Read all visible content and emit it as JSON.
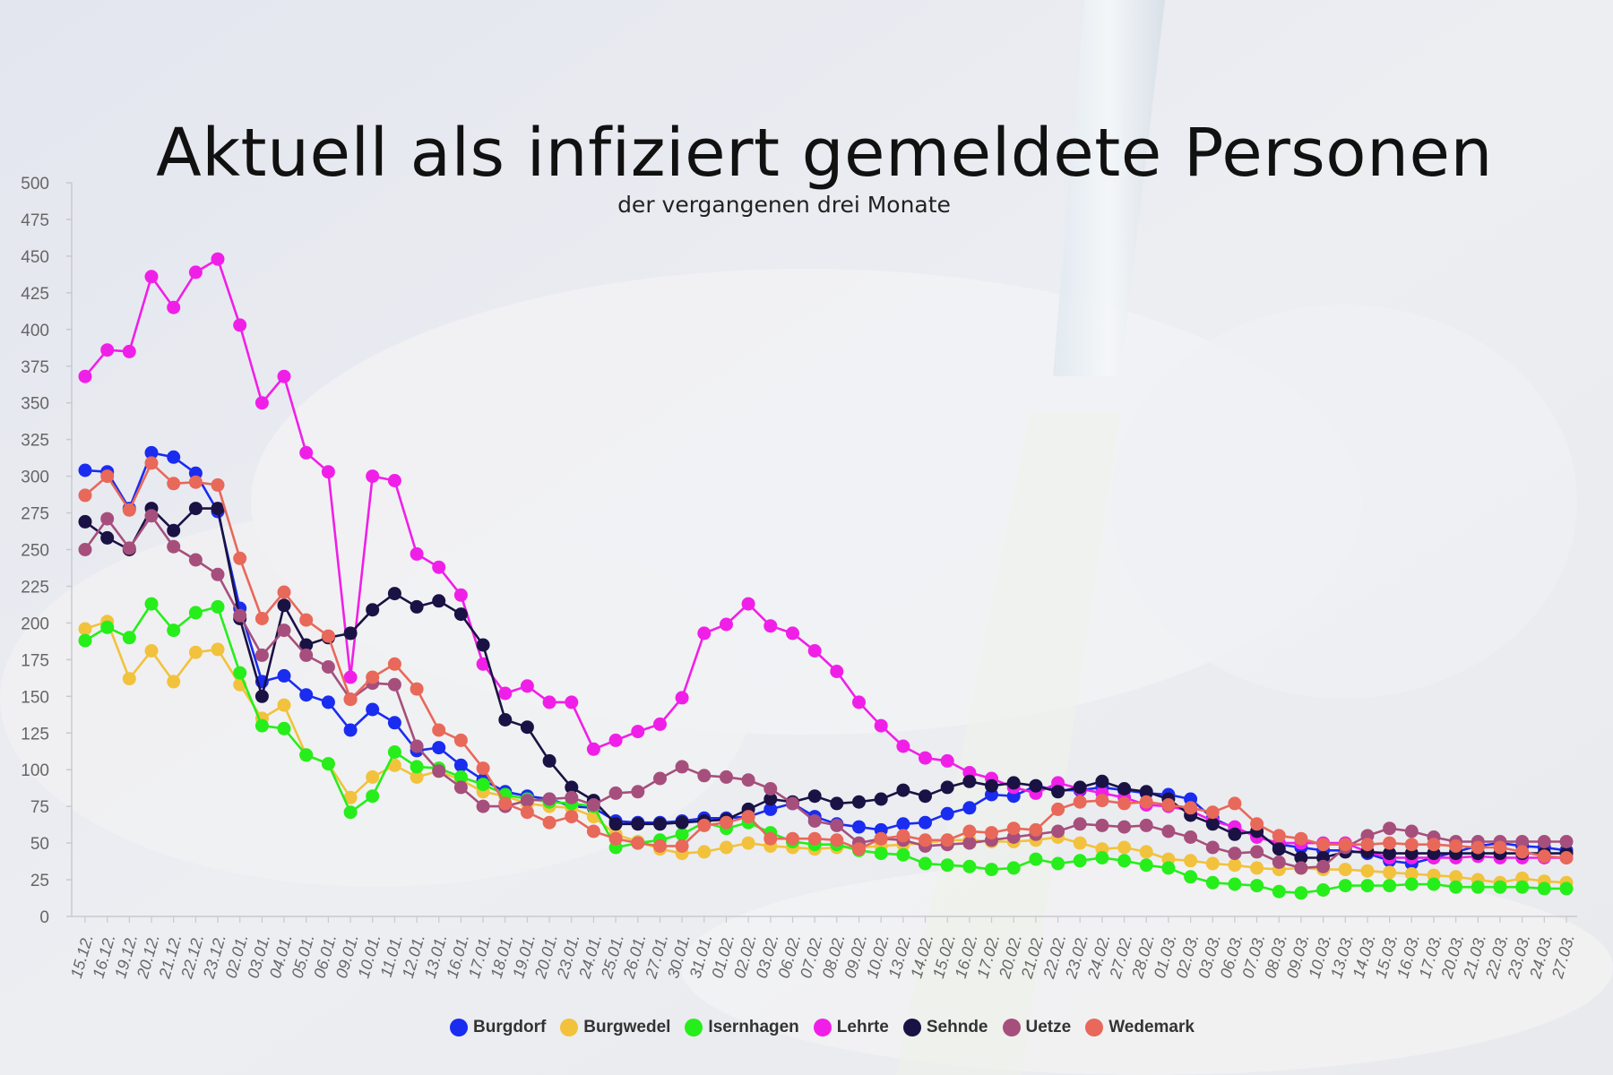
{
  "chart_data": {
    "type": "line",
    "title": "Aktuell als infiziert gemeldete Personen",
    "subtitle": "der vergangenen drei Monate",
    "xlabel": "",
    "ylabel": "",
    "ylim": [
      0,
      500
    ],
    "yticks": [
      0,
      25,
      50,
      75,
      100,
      125,
      150,
      175,
      200,
      225,
      250,
      275,
      300,
      325,
      350,
      375,
      400,
      425,
      450,
      475,
      500
    ],
    "grid": false,
    "legend_position": "bottom",
    "categories": [
      "15.12.",
      "16.12.",
      "19.12.",
      "20.12.",
      "21.12.",
      "22.12.",
      "23.12.",
      "02.01.",
      "03.01.",
      "04.01.",
      "05.01.",
      "06.01.",
      "09.01.",
      "10.01.",
      "11.01.",
      "12.01.",
      "13.01.",
      "16.01.",
      "17.01.",
      "18.01.",
      "19.01.",
      "20.01.",
      "23.01.",
      "24.01.",
      "25.01.",
      "26.01.",
      "27.01.",
      "30.01.",
      "31.01.",
      "01.02.",
      "02.02.",
      "03.02.",
      "06.02.",
      "07.02.",
      "08.02.",
      "09.02.",
      "10.02.",
      "13.02.",
      "14.02.",
      "15.02.",
      "16.02.",
      "17.02.",
      "20.02.",
      "21.02.",
      "22.02.",
      "23.02.",
      "24.02.",
      "27.02.",
      "28.02.",
      "01.03.",
      "02.03.",
      "03.03.",
      "06.03.",
      "07.03.",
      "08.03.",
      "09.03.",
      "10.03.",
      "13.03.",
      "14.03.",
      "15.03.",
      "16.03.",
      "17.03.",
      "20.03.",
      "21.03.",
      "22.03.",
      "23.03.",
      "24.03.",
      "27.03."
    ],
    "tick_labels": [
      "15.12.",
      "16.12.",
      "19.12.",
      "20.12.",
      "21.12.",
      "22.12.",
      "23.12.",
      "02.01.",
      "03.01.",
      "04.01.",
      "05.01.",
      "06.01.",
      "09.01.",
      "10.01.",
      "11.01.",
      "12.01.",
      "13.01.",
      "16.01.",
      "17.01.",
      "18.01.",
      "19.01.",
      "20.01.",
      "23.01.",
      "24.01.",
      "25.01.",
      "26.01.",
      "27.01.",
      "30.01.",
      "31.01.",
      "01.02.",
      "02.02.",
      "03.02.",
      "06.02.",
      "07.02.",
      "08.02.",
      "09.02.",
      "10.02.",
      "13.02.",
      "14.02.",
      "15.02.",
      "16.02.",
      "17.02.",
      "20.02.",
      "21.02.",
      "22.02.",
      "23.02.",
      "24.02.",
      "27.02.",
      "28.02.",
      "01.03.",
      "02.03.",
      "03.03.",
      "06.03.",
      "07.03.",
      "08.03.",
      "09.03.",
      "10.03.",
      "13.03.",
      "14.03.",
      "15.03.",
      "16.03.",
      "17.03.",
      "20.03.",
      "21.03.",
      "22.03.",
      "23.03.",
      "24.03.",
      "27.03."
    ],
    "series": [
      {
        "name": "Burgdorf",
        "color": "#1a2cf0",
        "values": [
          304,
          303,
          278,
          316,
          313,
          302,
          276,
          210,
          160,
          164,
          151,
          146,
          127,
          141,
          132,
          113,
          115,
          103,
          93,
          85,
          82,
          80,
          75,
          74,
          65,
          64,
          64,
          65,
          67,
          67,
          68,
          73,
          77,
          68,
          63,
          61,
          59,
          63,
          64,
          70,
          74,
          83,
          82,
          89,
          86,
          86,
          88,
          86,
          84,
          83,
          80,
          67,
          60,
          55,
          49,
          47,
          45,
          45,
          43,
          38,
          36,
          40,
          44,
          48,
          50,
          48,
          47,
          45
        ]
      },
      {
        "name": "Burgwedel",
        "color": "#f2c23c",
        "values": [
          196,
          201,
          162,
          181,
          160,
          180,
          182,
          158,
          135,
          144,
          110,
          104,
          81,
          95,
          103,
          95,
          99,
          93,
          85,
          82,
          77,
          75,
          74,
          68,
          56,
          51,
          46,
          43,
          44,
          47,
          50,
          48,
          47,
          46,
          47,
          47,
          48,
          49,
          50,
          52,
          52,
          51,
          51,
          52,
          54,
          50,
          46,
          47,
          44,
          39,
          38,
          36,
          35,
          33,
          32,
          33,
          32,
          32,
          31,
          30,
          29,
          28,
          27,
          25,
          23,
          26,
          24,
          23
        ]
      },
      {
        "name": "Isernhagen",
        "color": "#26ee1a",
        "values": [
          188,
          197,
          190,
          213,
          195,
          207,
          211,
          166,
          130,
          128,
          110,
          104,
          71,
          82,
          112,
          102,
          101,
          95,
          90,
          83,
          80,
          78,
          77,
          75,
          47,
          50,
          52,
          56,
          64,
          60,
          64,
          57,
          51,
          49,
          49,
          45,
          43,
          42,
          36,
          35,
          34,
          32,
          33,
          39,
          36,
          38,
          40,
          38,
          35,
          33,
          27,
          23,
          22,
          21,
          17,
          16,
          18,
          21,
          21,
          21,
          22,
          22,
          20,
          20,
          20,
          20,
          19,
          19
        ]
      },
      {
        "name": "Lehrte",
        "color": "#f01fe8",
        "values": [
          368,
          386,
          385,
          436,
          415,
          439,
          448,
          403,
          350,
          368,
          316,
          303,
          163,
          300,
          297,
          247,
          238,
          219,
          172,
          152,
          157,
          146,
          146,
          114,
          120,
          126,
          131,
          149,
          193,
          199,
          213,
          198,
          193,
          181,
          167,
          146,
          130,
          116,
          108,
          106,
          98,
          94,
          88,
          84,
          91,
          87,
          84,
          81,
          76,
          75,
          72,
          65,
          61,
          54,
          50,
          50,
          50,
          50,
          44,
          40,
          40,
          40,
          40,
          41,
          40,
          40,
          40,
          40
        ]
      },
      {
        "name": "Sehnde",
        "color": "#1a1244",
        "values": [
          269,
          258,
          250,
          278,
          263,
          278,
          278,
          203,
          150,
          212,
          185,
          190,
          193,
          209,
          220,
          211,
          215,
          206,
          185,
          134,
          129,
          106,
          88,
          79,
          63,
          63,
          63,
          64,
          65,
          66,
          73,
          80,
          78,
          82,
          77,
          78,
          80,
          86,
          82,
          88,
          92,
          89,
          91,
          89,
          85,
          88,
          92,
          87,
          85,
          80,
          69,
          63,
          56,
          58,
          46,
          40,
          40,
          44,
          44,
          43,
          43,
          43,
          43,
          43,
          43,
          43,
          43,
          43
        ]
      },
      {
        "name": "Uetze",
        "color": "#a64f7c",
        "values": [
          250,
          271,
          251,
          273,
          252,
          243,
          233,
          205,
          178,
          195,
          178,
          170,
          148,
          159,
          158,
          116,
          99,
          88,
          75,
          75,
          79,
          80,
          81,
          76,
          84,
          85,
          94,
          102,
          96,
          95,
          93,
          87,
          77,
          65,
          62,
          50,
          53,
          52,
          48,
          49,
          50,
          52,
          54,
          56,
          58,
          63,
          62,
          61,
          62,
          58,
          54,
          47,
          43,
          44,
          37,
          33,
          34,
          47,
          55,
          60,
          58,
          54,
          51,
          51,
          51,
          51,
          51,
          51
        ]
      },
      {
        "name": "Wedemark",
        "color": "#e8685a",
        "values": [
          287,
          300,
          277,
          309,
          295,
          296,
          294,
          244,
          203,
          221,
          202,
          191,
          148,
          163,
          172,
          155,
          127,
          120,
          101,
          77,
          71,
          64,
          68,
          58,
          53,
          50,
          48,
          48,
          62,
          64,
          68,
          53,
          53,
          53,
          52,
          46,
          53,
          55,
          52,
          52,
          58,
          57,
          60,
          59,
          73,
          78,
          79,
          77,
          78,
          76,
          74,
          71,
          77,
          63,
          55,
          53,
          49,
          49,
          49,
          50,
          49,
          49,
          48,
          47,
          47,
          44,
          41,
          40
        ]
      }
    ]
  }
}
